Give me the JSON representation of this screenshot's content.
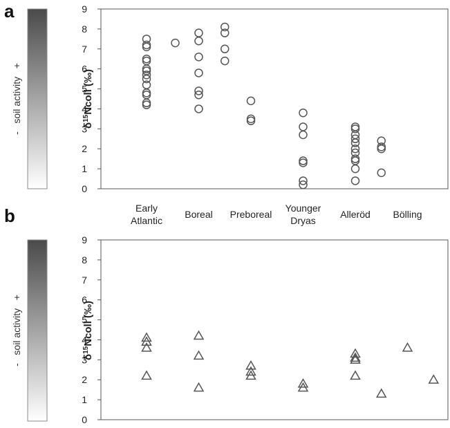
{
  "chart_data": [
    {
      "panel": "a",
      "type": "scatter",
      "marker": "circle",
      "ylabel": "δ15Ncoll (‰)",
      "ylim": [
        0,
        9
      ],
      "yticks": [
        "0",
        "1",
        "2",
        "3",
        "4",
        "5",
        "6",
        "7",
        "8",
        "9"
      ],
      "categories": [
        "Early Atlantic",
        "Boreal",
        "Preboreal",
        "Younger Dryas",
        "Alleröd",
        "Bölling"
      ],
      "grid": false,
      "gradient_label": "-   soil activity   +",
      "points": [
        {
          "x": 1,
          "y": 7.5
        },
        {
          "x": 1,
          "y": 7.2
        },
        {
          "x": 1,
          "y": 7.1
        },
        {
          "x": 1,
          "y": 6.5
        },
        {
          "x": 1,
          "y": 6.4
        },
        {
          "x": 1,
          "y": 6.0
        },
        {
          "x": 1,
          "y": 5.9
        },
        {
          "x": 1,
          "y": 5.7
        },
        {
          "x": 1,
          "y": 5.5
        },
        {
          "x": 1,
          "y": 5.2
        },
        {
          "x": 1,
          "y": 4.8
        },
        {
          "x": 1,
          "y": 4.7
        },
        {
          "x": 1,
          "y": 4.3
        },
        {
          "x": 1,
          "y": 4.2
        },
        {
          "x": 1.55,
          "y": 7.3
        },
        {
          "x": 2,
          "y": 7.8
        },
        {
          "x": 2,
          "y": 7.4
        },
        {
          "x": 2,
          "y": 6.6
        },
        {
          "x": 2,
          "y": 5.8
        },
        {
          "x": 2,
          "y": 4.9
        },
        {
          "x": 2,
          "y": 4.7
        },
        {
          "x": 2,
          "y": 4.0
        },
        {
          "x": 2.5,
          "y": 8.1
        },
        {
          "x": 2.5,
          "y": 7.8
        },
        {
          "x": 2.5,
          "y": 7.0
        },
        {
          "x": 2.5,
          "y": 6.4
        },
        {
          "x": 3,
          "y": 4.4
        },
        {
          "x": 3,
          "y": 3.5
        },
        {
          "x": 3,
          "y": 3.4
        },
        {
          "x": 4,
          "y": 3.8
        },
        {
          "x": 4,
          "y": 3.1
        },
        {
          "x": 4,
          "y": 2.7
        },
        {
          "x": 4,
          "y": 1.4
        },
        {
          "x": 4,
          "y": 1.3
        },
        {
          "x": 4,
          "y": 0.4
        },
        {
          "x": 4,
          "y": 0.2
        },
        {
          "x": 5,
          "y": 3.1
        },
        {
          "x": 5,
          "y": 3.0
        },
        {
          "x": 5,
          "y": 2.7
        },
        {
          "x": 5,
          "y": 2.5
        },
        {
          "x": 5,
          "y": 2.3
        },
        {
          "x": 5,
          "y": 2.0
        },
        {
          "x": 5,
          "y": 1.8
        },
        {
          "x": 5,
          "y": 1.5
        },
        {
          "x": 5,
          "y": 1.4
        },
        {
          "x": 5,
          "y": 1.0
        },
        {
          "x": 5,
          "y": 0.4
        },
        {
          "x": 5.5,
          "y": 2.4
        },
        {
          "x": 5.5,
          "y": 2.1
        },
        {
          "x": 5.5,
          "y": 2.0
        },
        {
          "x": 5.5,
          "y": 0.8
        }
      ]
    },
    {
      "panel": "b",
      "type": "scatter",
      "marker": "triangle",
      "ylabel": "δ15Ncoll (‰)",
      "ylim": [
        0,
        9
      ],
      "yticks": [
        "0",
        "1",
        "2",
        "3",
        "4",
        "5",
        "6",
        "7",
        "8",
        "9"
      ],
      "grid": false,
      "gradient_label": "-   soil activity   +",
      "points": [
        {
          "x": 1,
          "y": 4.1
        },
        {
          "x": 1,
          "y": 3.9
        },
        {
          "x": 1,
          "y": 3.6
        },
        {
          "x": 1,
          "y": 2.2
        },
        {
          "x": 2,
          "y": 4.2
        },
        {
          "x": 2,
          "y": 3.2
        },
        {
          "x": 2,
          "y": 1.6
        },
        {
          "x": 3,
          "y": 2.7
        },
        {
          "x": 3,
          "y": 2.4
        },
        {
          "x": 3,
          "y": 2.2
        },
        {
          "x": 4,
          "y": 1.8
        },
        {
          "x": 4,
          "y": 1.6
        },
        {
          "x": 5,
          "y": 3.3
        },
        {
          "x": 5,
          "y": 3.1
        },
        {
          "x": 5,
          "y": 3.0
        },
        {
          "x": 5,
          "y": 2.2
        },
        {
          "x": 5.5,
          "y": 1.3
        },
        {
          "x": 6,
          "y": 3.6
        },
        {
          "x": 6.5,
          "y": 2.0
        }
      ]
    }
  ],
  "panel_labels": [
    "a",
    "b"
  ],
  "colors": {
    "marker_stroke": "#555555",
    "axis": "#555555",
    "gradient_dark": "#4a4a4a",
    "gradient_light": "#ffffff"
  }
}
